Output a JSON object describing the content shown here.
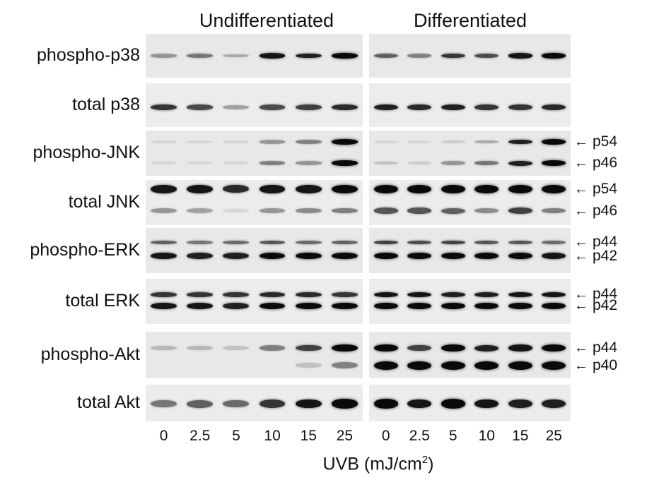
{
  "groups": [
    "Undifferentiated",
    "Differentiated"
  ],
  "rows": [
    {
      "label": "phospho-p38",
      "tags": [],
      "bands": [
        {
          "level": 0.5,
          "u": [
            0.35,
            0.5,
            0.25,
            0.95,
            0.9,
            1.0
          ],
          "d": [
            0.6,
            0.45,
            0.8,
            0.7,
            0.95,
            1.0
          ],
          "h": 6
        }
      ]
    },
    {
      "label": "total p38",
      "tags": [],
      "bands": [
        {
          "level": 0.55,
          "u": [
            0.8,
            0.7,
            0.3,
            0.7,
            0.75,
            0.85
          ],
          "d": [
            0.9,
            0.85,
            0.9,
            0.8,
            0.8,
            0.85
          ],
          "h": 7
        }
      ]
    },
    {
      "label": "phospho-JNK",
      "tags": [
        "p54",
        "p46"
      ],
      "bands": [
        {
          "level": 0.25,
          "u": [
            0.05,
            0.05,
            0.05,
            0.35,
            0.45,
            1.0
          ],
          "d": [
            0.05,
            0.05,
            0.1,
            0.25,
            0.9,
            1.0
          ],
          "h": 6
        },
        {
          "level": 0.72,
          "u": [
            0.05,
            0.05,
            0.05,
            0.45,
            0.35,
            1.0
          ],
          "d": [
            0.15,
            0.1,
            0.35,
            0.5,
            0.9,
            1.0
          ],
          "h": 6
        }
      ]
    },
    {
      "label": "total JNK",
      "tags": [
        "p54",
        "p46"
      ],
      "bands": [
        {
          "level": 0.2,
          "u": [
            0.95,
            0.95,
            0.85,
            0.95,
            0.95,
            1.0
          ],
          "d": [
            1.0,
            1.0,
            1.0,
            1.0,
            1.0,
            1.0
          ],
          "h": 10
        },
        {
          "level": 0.68,
          "u": [
            0.35,
            0.3,
            0.05,
            0.35,
            0.4,
            0.45
          ],
          "d": [
            0.65,
            0.65,
            0.6,
            0.4,
            0.75,
            0.45
          ],
          "h": 8
        }
      ]
    },
    {
      "label": "phospho-ERK",
      "tags": [
        "p44",
        "p42"
      ],
      "bands": [
        {
          "level": 0.32,
          "u": [
            0.6,
            0.5,
            0.55,
            0.65,
            0.55,
            0.6
          ],
          "d": [
            0.75,
            0.7,
            0.75,
            0.65,
            0.65,
            0.55
          ],
          "h": 5
        },
        {
          "level": 0.62,
          "u": [
            0.95,
            0.9,
            0.9,
            1.0,
            1.0,
            1.0
          ],
          "d": [
            1.0,
            1.0,
            1.0,
            1.0,
            1.0,
            0.95
          ],
          "h": 8
        }
      ]
    },
    {
      "label": "total ERK",
      "tags": [
        "p44",
        "p42"
      ],
      "bands": [
        {
          "level": 0.35,
          "u": [
            0.8,
            0.8,
            0.8,
            0.85,
            0.85,
            0.8
          ],
          "d": [
            0.95,
            0.95,
            0.9,
            0.9,
            0.95,
            0.95
          ],
          "h": 6
        },
        {
          "level": 0.6,
          "u": [
            0.95,
            0.95,
            0.9,
            1.0,
            1.0,
            1.0
          ],
          "d": [
            1.0,
            1.0,
            1.0,
            1.0,
            1.0,
            1.0
          ],
          "h": 8
        }
      ]
    },
    {
      "label": "phospho-Akt",
      "tags": [
        "p44",
        "p40"
      ],
      "bands": [
        {
          "level": 0.35,
          "u": [
            0.2,
            0.2,
            0.15,
            0.45,
            0.75,
            1.0
          ],
          "d": [
            1.0,
            0.75,
            1.0,
            0.9,
            0.95,
            1.0
          ],
          "h": 8
        },
        {
          "level": 0.72,
          "u": [
            0.0,
            0.0,
            0.0,
            0.0,
            0.15,
            0.45
          ],
          "d": [
            1.0,
            1.0,
            1.0,
            1.0,
            1.0,
            1.0
          ],
          "h": 10
        }
      ]
    },
    {
      "label": "total Akt",
      "tags": [],
      "bands": [
        {
          "level": 0.52,
          "u": [
            0.5,
            0.6,
            0.55,
            0.8,
            0.95,
            1.0
          ],
          "d": [
            1.0,
            0.95,
            1.0,
            0.95,
            0.9,
            0.9
          ],
          "h": 11
        }
      ]
    }
  ],
  "doses": [
    "0",
    "2.5",
    "5",
    "10",
    "15",
    "25"
  ],
  "x_axis": {
    "label": "UVB (mJ/cm",
    "superscript": "2",
    "suffix": ")"
  }
}
